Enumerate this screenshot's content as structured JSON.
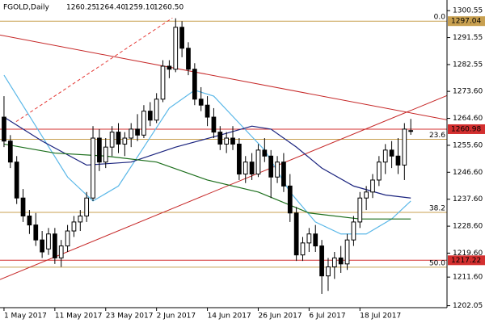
{
  "chart_data": {
    "type": "candlestick",
    "title": "FGOLD,Daily",
    "header_values": [
      "1260.25",
      "1264.40",
      "1259.10",
      "1260.50"
    ],
    "xlim": [
      -0.63,
      69.7
    ],
    "ylim": [
      1201.4,
      1304.1
    ],
    "xticks": [
      {
        "value": 0,
        "label": "1 May 2017"
      },
      {
        "value": 8,
        "label": "11 May 2017"
      },
      {
        "value": 16,
        "label": "23 May 2017"
      },
      {
        "value": 24,
        "label": "2 Jun 2017"
      },
      {
        "value": 32,
        "label": "14 Jun 2017"
      },
      {
        "value": 40,
        "label": "26 Jun 2017"
      },
      {
        "value": 48,
        "label": "6 Jul 2017"
      },
      {
        "value": 56,
        "label": "18 Jul 2017"
      }
    ],
    "yticks": [
      1300.55,
      1291.55,
      1282.55,
      {
        "value": 1273.6,
        "label": "1273.60"
      },
      {
        "value": 1264.6,
        "label": "1264.60"
      },
      {
        "value": 1255.6,
        "label": "1255.60"
      },
      {
        "value": 1246.6,
        "label": "1246.60"
      },
      {
        "value": 1237.6,
        "label": "1237.60"
      },
      {
        "value": 1228.6,
        "label": "1228.60"
      },
      {
        "value": 1219.6,
        "label": "1219.60"
      },
      {
        "value": 1211.6,
        "label": "1211.60"
      },
      1202.05
    ],
    "up_color": "#ffffff",
    "down_color": "#000000",
    "open": [
      1265,
      1257,
      1250,
      1238,
      1232,
      1229,
      1224,
      1221,
      1226,
      1218,
      1222,
      1227,
      1230,
      1232,
      1238,
      1258,
      1250,
      1255,
      1260,
      1256,
      1258,
      1261,
      1259,
      1267,
      1264,
      1271,
      1282,
      1281,
      1295,
      1288,
      1281,
      1271,
      1269,
      1265,
      1260,
      1256,
      1258,
      1256,
      1246,
      1250,
      1246,
      1254,
      1252,
      1245,
      1250,
      1242,
      1233,
      1219,
      1223,
      1226,
      1222,
      1212,
      1215,
      1218,
      1216,
      1224,
      1230,
      1238,
      1240,
      1244,
      1250,
      1254,
      1252,
      1249,
      1260.25
    ],
    "high": [
      1272,
      1259,
      1252,
      1241,
      1234,
      1233,
      1227,
      1228,
      1228,
      1224,
      1229,
      1232,
      1234,
      1240,
      1262,
      1261,
      1258,
      1262,
      1263,
      1260,
      1263,
      1266,
      1269,
      1270,
      1273,
      1284,
      1284,
      1298,
      1297,
      1290,
      1283,
      1275,
      1272,
      1268,
      1262,
      1260,
      1262,
      1258,
      1252,
      1253,
      1256,
      1258,
      1254,
      1252,
      1253,
      1246,
      1235,
      1225,
      1228,
      1229,
      1224,
      1218,
      1220,
      1222,
      1226,
      1232,
      1240,
      1242,
      1246,
      1252,
      1256,
      1257,
      1258,
      1263,
      1264.4
    ],
    "low": [
      1255,
      1248,
      1236,
      1230,
      1226,
      1222,
      1218,
      1219,
      1216,
      1215,
      1220,
      1225,
      1227,
      1230,
      1237,
      1247,
      1248,
      1252,
      1253,
      1252,
      1255,
      1257,
      1258,
      1262,
      1263,
      1270,
      1278,
      1280,
      1285,
      1279,
      1269,
      1267,
      1262,
      1258,
      1254,
      1253,
      1254,
      1244,
      1243,
      1244,
      1245,
      1250,
      1238,
      1243,
      1240,
      1230,
      1217,
      1217,
      1220,
      1220,
      1206,
      1207,
      1211,
      1213,
      1214,
      1222,
      1228,
      1234,
      1238,
      1242,
      1246,
      1248,
      1246,
      1244,
      1259.1
    ],
    "close": [
      1257,
      1250,
      1238,
      1232,
      1229,
      1224,
      1220,
      1226,
      1218,
      1222,
      1227,
      1230,
      1232,
      1238,
      1258,
      1250,
      1255,
      1260,
      1256,
      1258,
      1261,
      1259,
      1267,
      1264,
      1271,
      1282,
      1281,
      1295,
      1288,
      1281,
      1271,
      1269,
      1265,
      1260,
      1256,
      1258,
      1256,
      1246,
      1250,
      1246,
      1254,
      1252,
      1245,
      1250,
      1242,
      1233,
      1219,
      1223,
      1226,
      1222,
      1212,
      1215,
      1218,
      1216,
      1224,
      1230,
      1238,
      1240,
      1244,
      1250,
      1254,
      1252,
      1249,
      1261,
      1260.5
    ],
    "lines": [
      {
        "color": "#5bb8e8",
        "x": [
          0,
          5,
          10,
          14,
          18,
          22,
          26,
          30,
          33,
          37,
          41,
          45,
          49,
          53,
          57,
          61,
          64
        ],
        "values": [
          1279,
          1262,
          1245,
          1237,
          1242,
          1255,
          1268,
          1274,
          1272,
          1263,
          1254,
          1240,
          1230,
          1226,
          1226,
          1231,
          1237
        ]
      },
      {
        "color": "#1a237e",
        "x": [
          0,
          6,
          13,
          20,
          27,
          34,
          39,
          42,
          46,
          50,
          55,
          60,
          64
        ],
        "values": [
          1265,
          1257,
          1249,
          1250,
          1255,
          1259,
          1262,
          1261,
          1255,
          1248,
          1242,
          1239,
          1238
        ]
      },
      {
        "color": "#1b6e1b",
        "x": [
          0,
          8,
          16,
          24,
          32,
          40,
          48,
          56,
          64
        ],
        "values": [
          1256,
          1253,
          1252,
          1250,
          1244,
          1240,
          1233,
          1231,
          1231
        ]
      }
    ],
    "trendlines": [
      {
        "color": "#c62828",
        "x": [
          -0.63,
          69.7
        ],
        "values": [
          1292.4,
          1264.1
        ]
      },
      {
        "color": "#c62828",
        "x": [
          -0.63,
          69.7
        ],
        "values": [
          1210.8,
          1272.2
        ]
      },
      {
        "color": "#e53935",
        "dashed": true,
        "x": [
          1.9,
          26.5
        ],
        "values": [
          1263.5,
          1298.1
        ]
      }
    ],
    "fib_color": "#c8a050",
    "fib_levels": [
      {
        "value": 1297.04,
        "label": "0.0"
      },
      {
        "value": 1257.6,
        "label": "23.6"
      },
      {
        "value": 1233.2,
        "label": "38.2"
      },
      {
        "value": 1214.9,
        "label": "50.0"
      }
    ],
    "price_levels": [
      {
        "value": 1297.04,
        "color": "#c8a050"
      },
      {
        "value": 1260.98,
        "color": "#d32f2f"
      },
      {
        "value": 1217.22,
        "color": "#d32f2f"
      }
    ]
  }
}
